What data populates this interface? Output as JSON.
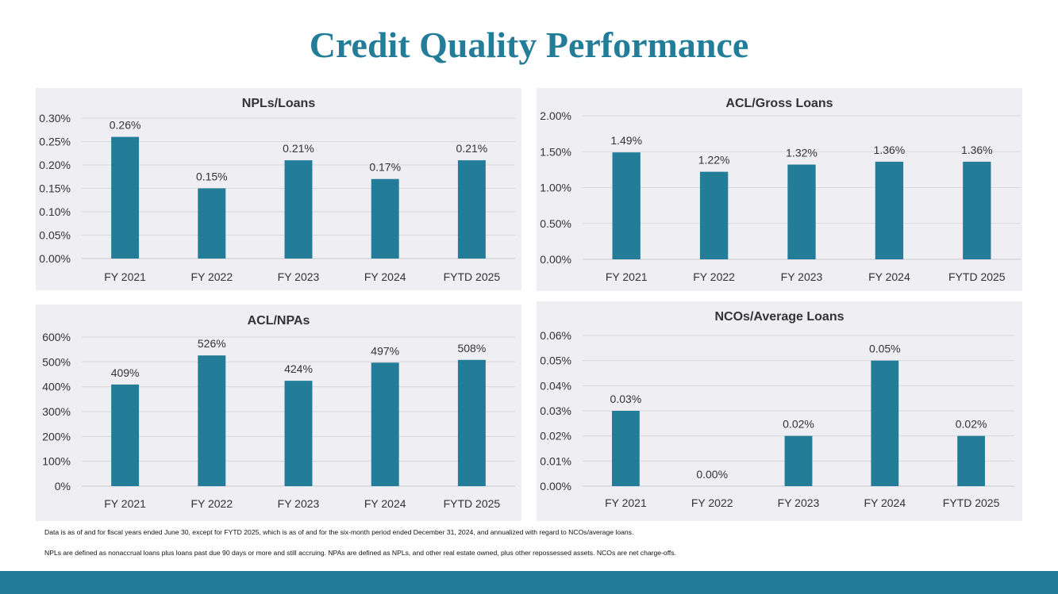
{
  "page": {
    "title": "Credit Quality Performance",
    "footnotes": [
      "Data is as of and for fiscal years ended June 30, except for FYTD 2025, which is as of and for the six-month period ended December 31, 2024, and annualized with regard to NCOs/average loans.",
      "NPLs are defined as nonaccrual loans plus loans past due 90 days or more and still accruing. NPAs are defined as NPLs, and other real estate owned, plus other repossessed assets. NCOs are net charge-offs."
    ],
    "colors": {
      "accent": "#237d99",
      "bar": "#237d99",
      "panel": "#eeeef3"
    }
  },
  "chart_data": [
    {
      "id": "npls-loans",
      "type": "bar",
      "title": "NPLs/Loans",
      "categories": [
        "FY 2021",
        "FY 2022",
        "FY 2023",
        "FY 2024",
        "FYTD 2025"
      ],
      "values": [
        0.26,
        0.15,
        0.21,
        0.17,
        0.21
      ],
      "data_labels": [
        "0.26%",
        "0.15%",
        "0.21%",
        "0.17%",
        "0.21%"
      ],
      "ylim": [
        0,
        0.3
      ],
      "yticks": [
        0,
        0.05,
        0.1,
        0.15,
        0.2,
        0.25,
        0.3
      ],
      "ytick_labels": [
        "0.00%",
        "0.05%",
        "0.10%",
        "0.15%",
        "0.20%",
        "0.25%",
        "0.30%"
      ],
      "grid": true
    },
    {
      "id": "acl-gross-loans",
      "type": "bar",
      "title": "ACL/Gross Loans",
      "categories": [
        "FY 2021",
        "FY 2022",
        "FY 2023",
        "FY 2024",
        "FYTD 2025"
      ],
      "values": [
        1.49,
        1.22,
        1.32,
        1.36,
        1.36
      ],
      "data_labels": [
        "1.49%",
        "1.22%",
        "1.32%",
        "1.36%",
        "1.36%"
      ],
      "ylim": [
        0,
        2.0
      ],
      "yticks": [
        0,
        0.5,
        1.0,
        1.5,
        2.0
      ],
      "ytick_labels": [
        "0.00%",
        "0.50%",
        "1.00%",
        "1.50%",
        "2.00%"
      ],
      "grid": true
    },
    {
      "id": "acl-npas",
      "type": "bar",
      "title": "ACL/NPAs",
      "categories": [
        "FY 2021",
        "FY 2022",
        "FY 2023",
        "FY 2024",
        "FYTD 2025"
      ],
      "values": [
        409,
        526,
        424,
        497,
        508
      ],
      "data_labels": [
        "409%",
        "526%",
        "424%",
        "497%",
        "508%"
      ],
      "ylim": [
        0,
        600
      ],
      "yticks": [
        0,
        100,
        200,
        300,
        400,
        500,
        600
      ],
      "ytick_labels": [
        "0%",
        "100%",
        "200%",
        "300%",
        "400%",
        "500%",
        "600%"
      ],
      "grid": true
    },
    {
      "id": "ncos-average-loans",
      "type": "bar",
      "title": "NCOs/Average Loans",
      "categories": [
        "FY 2021",
        "FY 2022",
        "FY 2023",
        "FY 2024",
        "FYTD 2025"
      ],
      "values": [
        0.03,
        0.0,
        0.02,
        0.05,
        0.02
      ],
      "data_labels": [
        "0.03%",
        "0.00%",
        "0.02%",
        "0.05%",
        "0.02%"
      ],
      "ylim": [
        0,
        0.06
      ],
      "yticks": [
        0,
        0.01,
        0.02,
        0.03,
        0.04,
        0.05,
        0.06
      ],
      "ytick_labels": [
        "0.00%",
        "0.01%",
        "0.02%",
        "0.03%",
        "0.04%",
        "0.05%",
        "0.06%"
      ],
      "grid": true
    }
  ]
}
